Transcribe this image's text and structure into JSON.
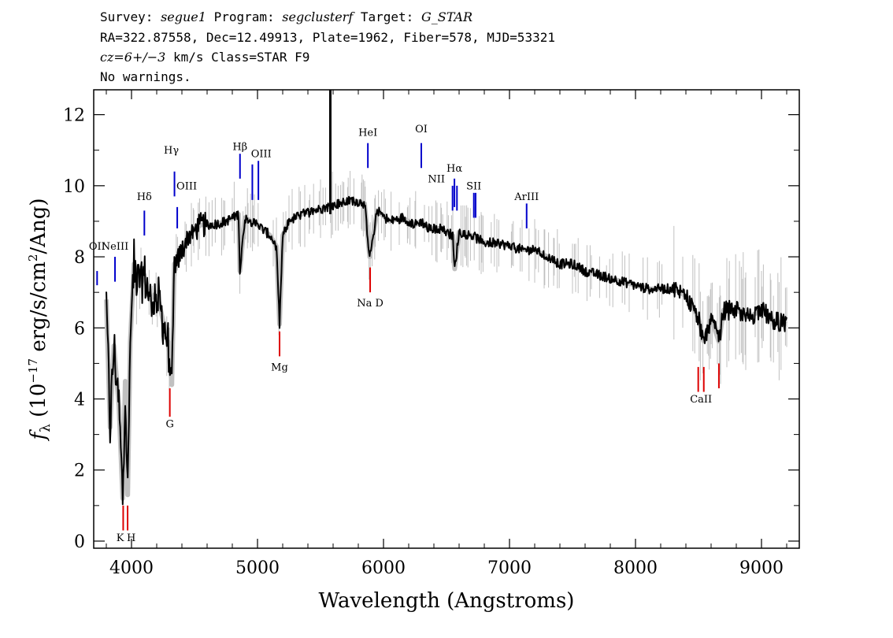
{
  "header": {
    "line1": {
      "survey_label": "Survey: ",
      "survey": "segue1",
      "program_label": " Program: ",
      "program": "segclusterf",
      "target_label": " Target: ",
      "target": "G_STAR"
    },
    "line2": "RA=322.87558, Dec=12.49913, Plate=1962, Fiber=578, MJD=53321",
    "line3": {
      "cz": "cz=6+/−3",
      "rest": " km/s Class=STAR F9"
    },
    "line4": "No warnings."
  },
  "chart_data": {
    "type": "line",
    "xlabel": "Wavelength (Angstroms)",
    "ylabel_parts": [
      "f",
      "λ",
      " (10",
      "−17",
      " erg/s/cm",
      "2",
      "/Ang)"
    ],
    "xlim": [
      3700,
      9300
    ],
    "ylim": [
      -0.2,
      12.7
    ],
    "x_ticks": [
      4000,
      5000,
      6000,
      7000,
      8000,
      9000
    ],
    "y_ticks": [
      0,
      2,
      4,
      6,
      8,
      10,
      12
    ],
    "grid": false,
    "colors": {
      "flux": "#000000",
      "error_band": "#c0c0c0",
      "emission_lines": "#0000cc",
      "absorption_lines": "#dd0000"
    },
    "series": [
      {
        "x": [
          3800,
          3830,
          3860,
          3900,
          3930,
          3950,
          3970,
          3990,
          4020,
          4060,
          4100,
          4150,
          4200,
          4250,
          4290,
          4320,
          4340,
          4380,
          4450,
          4550,
          4650,
          4750,
          4850,
          4860,
          4900,
          5000,
          5100,
          5150,
          5175,
          5200,
          5250,
          5350,
          5450,
          5550,
          5650,
          5750,
          5850,
          5890,
          5950,
          6050,
          6150,
          6250,
          6300,
          6350,
          6450,
          6550,
          6563,
          6600,
          6700,
          6800,
          6900,
          7000,
          7100,
          7200,
          7300,
          7400,
          7500,
          7600,
          7700,
          7800,
          7900,
          8000,
          8100,
          8200,
          8300,
          8400,
          8498,
          8542,
          8600,
          8662,
          8700,
          8800,
          8900,
          9000,
          9100,
          9200
        ],
        "y": [
          6.8,
          3.2,
          5.5,
          3.8,
          1.2,
          4.5,
          1.3,
          5.6,
          7.8,
          7.2,
          7.5,
          6.8,
          7.0,
          6.2,
          5.6,
          4.4,
          7.8,
          8.0,
          8.6,
          8.9,
          8.9,
          9.0,
          9.2,
          7.6,
          9.1,
          8.9,
          8.6,
          8.3,
          6.1,
          8.6,
          9.0,
          9.2,
          9.3,
          9.4,
          9.5,
          9.6,
          9.5,
          8.0,
          9.3,
          9.0,
          9.1,
          8.9,
          9.0,
          8.8,
          8.8,
          8.6,
          7.6,
          8.7,
          8.6,
          8.4,
          8.4,
          8.3,
          8.2,
          8.2,
          8.0,
          7.8,
          7.8,
          7.6,
          7.5,
          7.4,
          7.3,
          7.2,
          7.1,
          7.1,
          7.1,
          6.9,
          6.3,
          5.6,
          6.3,
          5.6,
          6.5,
          6.5,
          6.3,
          6.5,
          6.2,
          6.1
        ]
      }
    ],
    "emission_lines": [
      {
        "label": "OII",
        "x": 3727
      },
      {
        "label": "NeIII",
        "x": 3869
      },
      {
        "label": "Hδ",
        "x": 4102
      },
      {
        "label": "Hγ",
        "x": 4341
      },
      {
        "label": "OIII",
        "x": 4363
      },
      {
        "label": "Hβ",
        "x": 4861
      },
      {
        "label": "OIII",
        "x": 4959
      },
      {
        "label": "OIII",
        "x": 5007
      },
      {
        "label": "HeI",
        "x": 5876
      },
      {
        "label": "OI",
        "x": 6300
      },
      {
        "label": "NII",
        "x": 6548
      },
      {
        "label": "Hα",
        "x": 6563
      },
      {
        "label": "NII",
        "x": 6583
      },
      {
        "label": "SII",
        "x": 6717
      },
      {
        "label": "SII",
        "x": 6731
      },
      {
        "label": "ArIII",
        "x": 7136
      }
    ],
    "absorption_lines": [
      {
        "label": "K",
        "x": 3934
      },
      {
        "label": "H",
        "x": 3969
      },
      {
        "label": "G",
        "x": 4304
      },
      {
        "label": "Mg",
        "x": 5175
      },
      {
        "label": "Na D",
        "x": 5894
      },
      {
        "label": "CaII",
        "x": 8498
      },
      {
        "label": "CaII",
        "x": 8542
      },
      {
        "label": "CaII",
        "x": 8662
      }
    ]
  }
}
